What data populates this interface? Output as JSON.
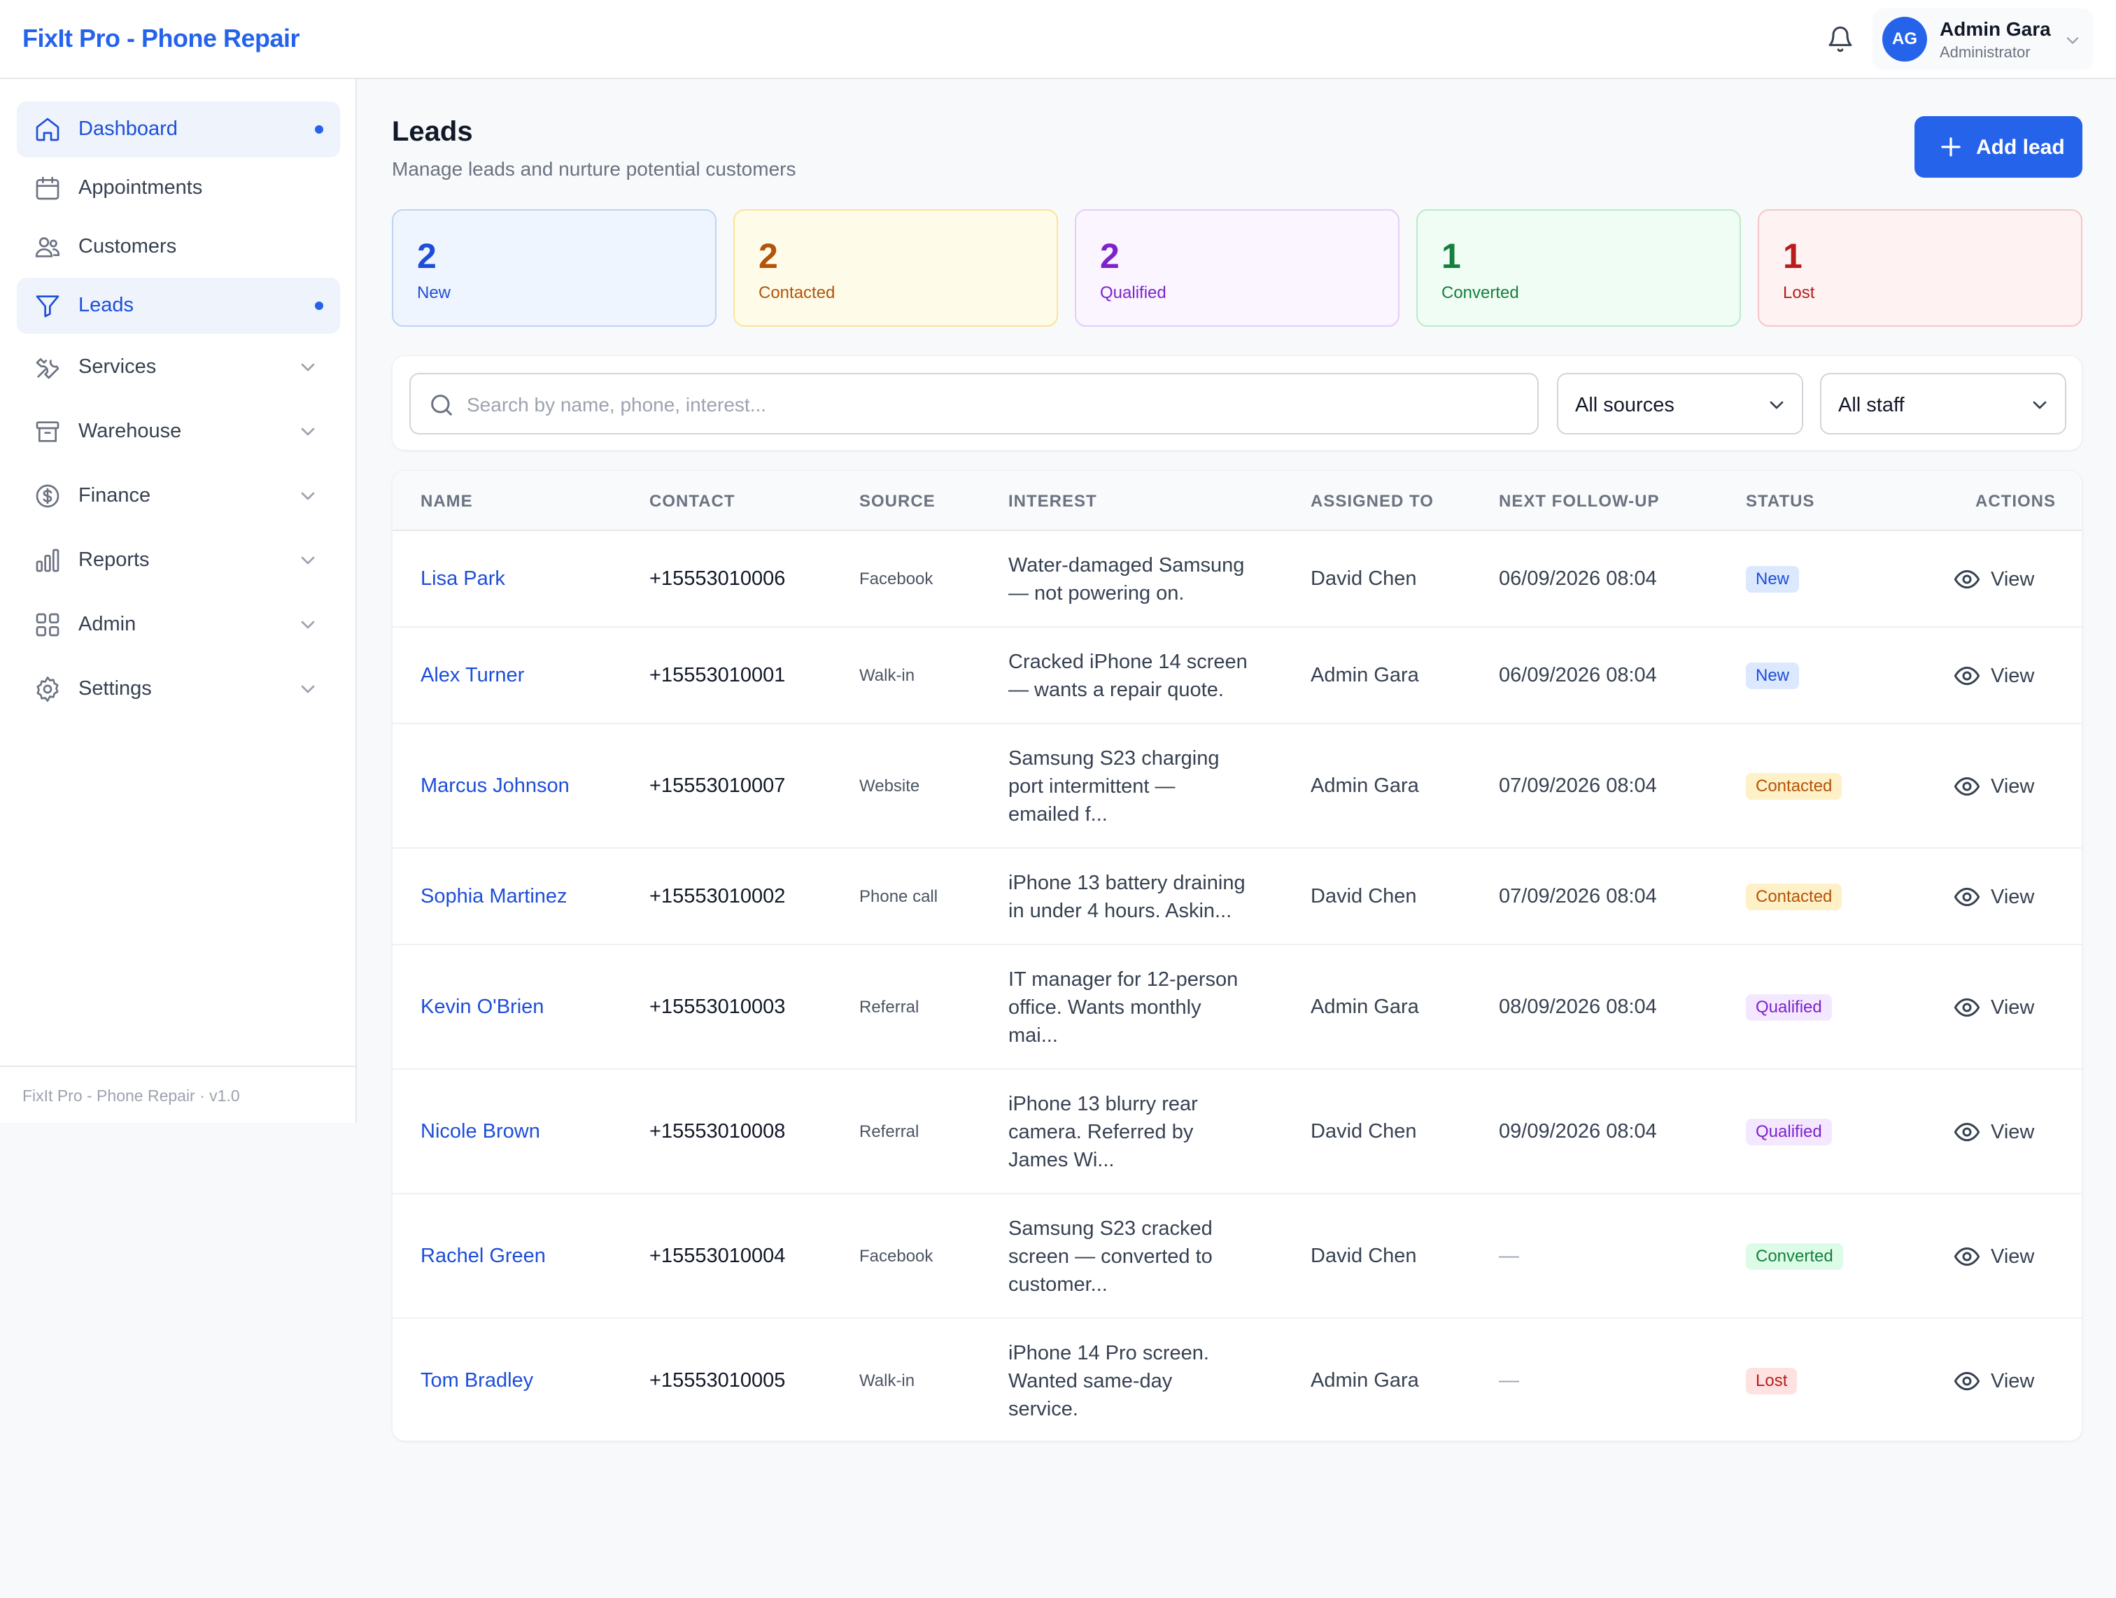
{
  "app": {
    "brand": "FixIt Pro - Phone Repair",
    "footer": "FixIt Pro - Phone Repair · v1.0"
  },
  "user": {
    "initials": "AG",
    "name": "Admin Gara",
    "role": "Administrator"
  },
  "sidebar": {
    "items": [
      {
        "label": "Dashboard",
        "icon": "home-icon"
      },
      {
        "label": "Appointments",
        "icon": "calendar-icon"
      },
      {
        "label": "Customers",
        "icon": "users-icon"
      },
      {
        "label": "Leads",
        "icon": "filter-icon"
      },
      {
        "label": "Services",
        "icon": "tools-icon"
      },
      {
        "label": "Warehouse",
        "icon": "archive-icon"
      },
      {
        "label": "Finance",
        "icon": "dollar-icon"
      },
      {
        "label": "Reports",
        "icon": "bar-chart-icon"
      },
      {
        "label": "Admin",
        "icon": "grid-icon"
      },
      {
        "label": "Settings",
        "icon": "gear-icon"
      }
    ]
  },
  "page": {
    "title": "Leads",
    "subtitle": "Manage leads and nurture potential customers",
    "add_label": "Add lead"
  },
  "stats": [
    {
      "value": "2",
      "label": "New"
    },
    {
      "value": "2",
      "label": "Contacted"
    },
    {
      "value": "2",
      "label": "Qualified"
    },
    {
      "value": "1",
      "label": "Converted"
    },
    {
      "value": "1",
      "label": "Lost"
    }
  ],
  "filters": {
    "search_placeholder": "Search by name, phone, interest...",
    "source": "All sources",
    "staff": "All staff"
  },
  "table": {
    "columns": [
      "NAME",
      "CONTACT",
      "SOURCE",
      "INTEREST",
      "ASSIGNED TO",
      "NEXT FOLLOW-UP",
      "STATUS",
      "ACTIONS"
    ],
    "rows": [
      {
        "name": "Lisa Park",
        "contact": "+15553010006",
        "source": "Facebook",
        "interest": [
          "Water-damaged Samsung",
          "— not powering on."
        ],
        "assigned": "David Chen",
        "followup": "06/09/2026 08:04",
        "status": "New",
        "action": "View"
      },
      {
        "name": "Alex Turner",
        "contact": "+15553010001",
        "source": "Walk-in",
        "interest": [
          "Cracked iPhone 14 screen",
          "— wants a repair quote."
        ],
        "assigned": "Admin Gara",
        "followup": "06/09/2026 08:04",
        "status": "New",
        "action": "View"
      },
      {
        "name": "Marcus Johnson",
        "contact": "+15553010007",
        "source": "Website",
        "interest": [
          "Samsung S23 charging",
          "port intermittent —",
          "emailed f..."
        ],
        "assigned": "Admin Gara",
        "followup": "07/09/2026 08:04",
        "status": "Contacted",
        "action": "View"
      },
      {
        "name": "Sophia Martinez",
        "contact": "+15553010002",
        "source": "Phone call",
        "interest": [
          "iPhone 13 battery draining",
          "in under 4 hours. Askin..."
        ],
        "assigned": "David Chen",
        "followup": "07/09/2026 08:04",
        "status": "Contacted",
        "action": "View"
      },
      {
        "name": "Kevin O'Brien",
        "contact": "+15553010003",
        "source": "Referral",
        "interest": [
          "IT manager for 12-person",
          "office. Wants monthly",
          "mai..."
        ],
        "assigned": "Admin Gara",
        "followup": "08/09/2026 08:04",
        "status": "Qualified",
        "action": "View"
      },
      {
        "name": "Nicole Brown",
        "contact": "+15553010008",
        "source": "Referral",
        "interest": [
          "iPhone 13 blurry rear",
          "camera. Referred by",
          "James Wi..."
        ],
        "assigned": "David Chen",
        "followup": "09/09/2026 08:04",
        "status": "Qualified",
        "action": "View"
      },
      {
        "name": "Rachel Green",
        "contact": "+15553010004",
        "source": "Facebook",
        "interest": [
          "Samsung S23 cracked",
          "screen — converted to",
          "customer..."
        ],
        "assigned": "David Chen",
        "followup": "—",
        "status": "Converted",
        "action": "View"
      },
      {
        "name": "Tom Bradley",
        "contact": "+15553010005",
        "source": "Walk-in",
        "interest": [
          "iPhone 14 Pro screen.",
          "Wanted same-day",
          "service."
        ],
        "assigned": "Admin Gara",
        "followup": "—",
        "status": "Lost",
        "action": "View"
      }
    ]
  },
  "colors": {
    "accent": "#2563eb",
    "new": "#1d4ed8",
    "contacted": "#b45309",
    "qualified": "#7e22ce",
    "converted": "#15803d",
    "lost": "#b91c1c"
  }
}
